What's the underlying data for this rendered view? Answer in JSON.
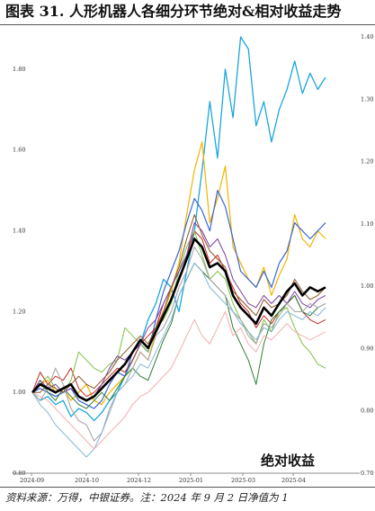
{
  "title": "图表 31. 人形机器人各细分环节绝对&相对收益走势",
  "source": "资料来源：万得，中银证券。注：2024 年 9 月 2 日净值为 1",
  "colors": {
    "main": "#000000",
    "cyan": "#1aa6dc",
    "gold": "#f2b400",
    "blue": "#3a66d6",
    "red": "#c62828",
    "green": "#7cc242",
    "darkgreen": "#2e7d32",
    "purple": "#7b3fa0",
    "brown": "#8d5524",
    "gray": "#a8a8a8",
    "pink": "#f4b4b4",
    "lightblue": "#86b6d8"
  },
  "chart_data": {
    "type": "line",
    "annotation": "绝对收益",
    "x_ticks": [
      "2024-09",
      "2024-10",
      "2024-12",
      "2025-01",
      "2025-03",
      "2025-04"
    ],
    "y_left": {
      "ticks": [
        "0.80",
        "1.00",
        "1.20",
        "1.40",
        "1.60",
        "1.80"
      ],
      "range": [
        0.8,
        1.88
      ]
    },
    "y_right": {
      "ticks": [
        "0.70",
        "0.80",
        "0.90",
        "1.00",
        "1.10",
        "1.20",
        "1.30",
        "1.40"
      ],
      "range": [
        0.7,
        1.4
      ]
    },
    "x_count": 39,
    "series": [
      {
        "key": "cyan",
        "width": 1.3,
        "values": [
          1.0,
          0.98,
          0.99,
          0.97,
          0.98,
          0.94,
          0.96,
          0.95,
          0.93,
          0.95,
          0.98,
          1.0,
          1.04,
          1.08,
          1.12,
          1.18,
          1.22,
          1.28,
          1.26,
          1.2,
          1.3,
          1.4,
          1.55,
          1.72,
          1.58,
          1.8,
          1.68,
          1.88,
          1.85,
          1.66,
          1.72,
          1.62,
          1.7,
          1.75,
          1.82,
          1.74,
          1.79,
          1.75,
          1.78
        ]
      },
      {
        "key": "gold",
        "width": 1.2,
        "values": [
          1.0,
          1.02,
          1.03,
          1.0,
          1.01,
          0.98,
          1.0,
          1.02,
          0.98,
          0.97,
          1.0,
          1.02,
          1.04,
          1.06,
          1.1,
          1.08,
          1.15,
          1.2,
          1.25,
          1.32,
          1.44,
          1.55,
          1.62,
          1.42,
          1.48,
          1.56,
          1.36,
          1.32,
          1.28,
          1.26,
          1.31,
          1.24,
          1.29,
          1.33,
          1.44,
          1.38,
          1.36,
          1.4,
          1.38
        ]
      },
      {
        "key": "blue",
        "width": 1.2,
        "values": [
          1.0,
          1.01,
          1.0,
          0.99,
          1.0,
          1.01,
          0.98,
          0.97,
          0.96,
          0.98,
          1.02,
          1.05,
          1.04,
          1.1,
          1.12,
          1.1,
          1.18,
          1.25,
          1.3,
          1.35,
          1.42,
          1.48,
          1.45,
          1.4,
          1.5,
          1.46,
          1.38,
          1.3,
          1.28,
          1.26,
          1.3,
          1.26,
          1.32,
          1.35,
          1.42,
          1.4,
          1.38,
          1.4,
          1.42
        ]
      },
      {
        "key": "red",
        "width": 1.0,
        "values": [
          1.0,
          1.05,
          1.02,
          1.04,
          1.03,
          1.06,
          1.01,
          0.99,
          1.0,
          1.02,
          1.04,
          1.06,
          1.05,
          1.08,
          1.12,
          1.14,
          1.16,
          1.22,
          1.26,
          1.3,
          1.34,
          1.4,
          1.38,
          1.32,
          1.34,
          1.3,
          1.26,
          1.22,
          1.2,
          1.16,
          1.19,
          1.17,
          1.2,
          1.22,
          1.24,
          1.2,
          1.18,
          1.17,
          1.18
        ]
      },
      {
        "key": "green",
        "width": 1.0,
        "values": [
          1.0,
          1.02,
          1.04,
          1.01,
          1.0,
          1.03,
          1.1,
          1.08,
          1.06,
          1.05,
          1.07,
          1.08,
          1.16,
          1.14,
          1.12,
          1.1,
          1.16,
          1.18,
          1.22,
          1.3,
          1.36,
          1.4,
          1.34,
          1.28,
          1.3,
          1.28,
          1.22,
          1.18,
          1.15,
          1.12,
          1.18,
          1.15,
          1.2,
          1.21,
          1.16,
          1.12,
          1.1,
          1.07,
          1.06
        ]
      },
      {
        "key": "darkgreen",
        "width": 1.0,
        "values": [
          1.0,
          1.03,
          1.0,
          0.98,
          1.01,
          0.99,
          0.97,
          0.96,
          0.98,
          1.0,
          0.98,
          1.01,
          1.04,
          1.06,
          1.04,
          1.03,
          1.08,
          1.13,
          1.17,
          1.24,
          1.28,
          1.32,
          1.3,
          1.28,
          1.26,
          1.24,
          1.16,
          1.12,
          1.08,
          1.02,
          1.12,
          1.18,
          1.2,
          1.22,
          1.24,
          1.2,
          1.19,
          1.21,
          1.22
        ]
      },
      {
        "key": "purple",
        "width": 1.0,
        "values": [
          1.0,
          1.03,
          1.01,
          1.02,
          1.0,
          1.01,
          0.99,
          0.98,
          0.99,
          1.02,
          1.06,
          1.09,
          1.08,
          1.1,
          1.12,
          1.16,
          1.18,
          1.22,
          1.26,
          1.3,
          1.34,
          1.42,
          1.4,
          1.36,
          1.38,
          1.34,
          1.28,
          1.25,
          1.22,
          1.21,
          1.24,
          1.22,
          1.24,
          1.22,
          1.25,
          1.22,
          1.21,
          1.23,
          1.24
        ]
      },
      {
        "key": "brown",
        "width": 1.0,
        "values": [
          1.0,
          1.0,
          1.02,
          1.01,
          1.0,
          1.02,
          1.04,
          1.02,
          1.01,
          1.03,
          1.05,
          1.08,
          1.1,
          1.12,
          1.14,
          1.12,
          1.16,
          1.2,
          1.26,
          1.31,
          1.38,
          1.44,
          1.39,
          1.35,
          1.33,
          1.31,
          1.25,
          1.23,
          1.21,
          1.19,
          1.23,
          1.21,
          1.22,
          1.24,
          1.28,
          1.25,
          1.23,
          1.24,
          1.26
        ]
      },
      {
        "key": "gray",
        "width": 1.1,
        "values": [
          1.0,
          0.98,
          1.01,
          1.06,
          1.02,
          0.96,
          0.93,
          0.92,
          0.88,
          0.9,
          0.95,
          1.0,
          1.02,
          1.06,
          1.1,
          1.08,
          1.14,
          1.16,
          1.2,
          1.26,
          1.3,
          1.36,
          1.33,
          1.28,
          1.26,
          1.24,
          1.2,
          1.18,
          1.14,
          1.12,
          1.17,
          1.16,
          1.19,
          1.22,
          1.2,
          1.2,
          1.22,
          1.21,
          1.22
        ]
      },
      {
        "key": "lightblue",
        "width": 1.0,
        "values": [
          1.0,
          0.97,
          0.95,
          0.92,
          0.9,
          0.88,
          0.86,
          0.84,
          0.86,
          0.9,
          0.96,
          1.0,
          1.02,
          1.04,
          1.07,
          1.06,
          1.1,
          1.14,
          1.18,
          1.24,
          1.28,
          1.32,
          1.3,
          1.26,
          1.24,
          1.22,
          1.2,
          1.17,
          1.15,
          1.13,
          1.16,
          1.15,
          1.18,
          1.2,
          1.19,
          1.18,
          1.2,
          1.19,
          1.21
        ]
      },
      {
        "key": "pink",
        "width": 1.1,
        "values": [
          1.0,
          0.99,
          0.98,
          0.96,
          0.94,
          0.92,
          0.9,
          0.88,
          0.86,
          0.88,
          0.9,
          0.92,
          0.94,
          0.97,
          0.99,
          1.0,
          1.02,
          1.04,
          1.06,
          1.1,
          1.14,
          1.18,
          1.14,
          1.12,
          1.16,
          1.2,
          1.14,
          1.16,
          1.12,
          1.1,
          1.14,
          1.13,
          1.15,
          1.17,
          1.15,
          1.14,
          1.13,
          1.14,
          1.15
        ]
      },
      {
        "key": "main",
        "width": 2.6,
        "values": [
          1.0,
          1.02,
          1.01,
          1.0,
          1.01,
          1.02,
          0.99,
          0.98,
          0.99,
          1.01,
          1.03,
          1.05,
          1.07,
          1.1,
          1.13,
          1.11,
          1.15,
          1.19,
          1.23,
          1.28,
          1.33,
          1.38,
          1.36,
          1.31,
          1.32,
          1.3,
          1.24,
          1.21,
          1.19,
          1.17,
          1.21,
          1.19,
          1.22,
          1.25,
          1.27,
          1.24,
          1.26,
          1.25,
          1.26
        ]
      }
    ]
  }
}
